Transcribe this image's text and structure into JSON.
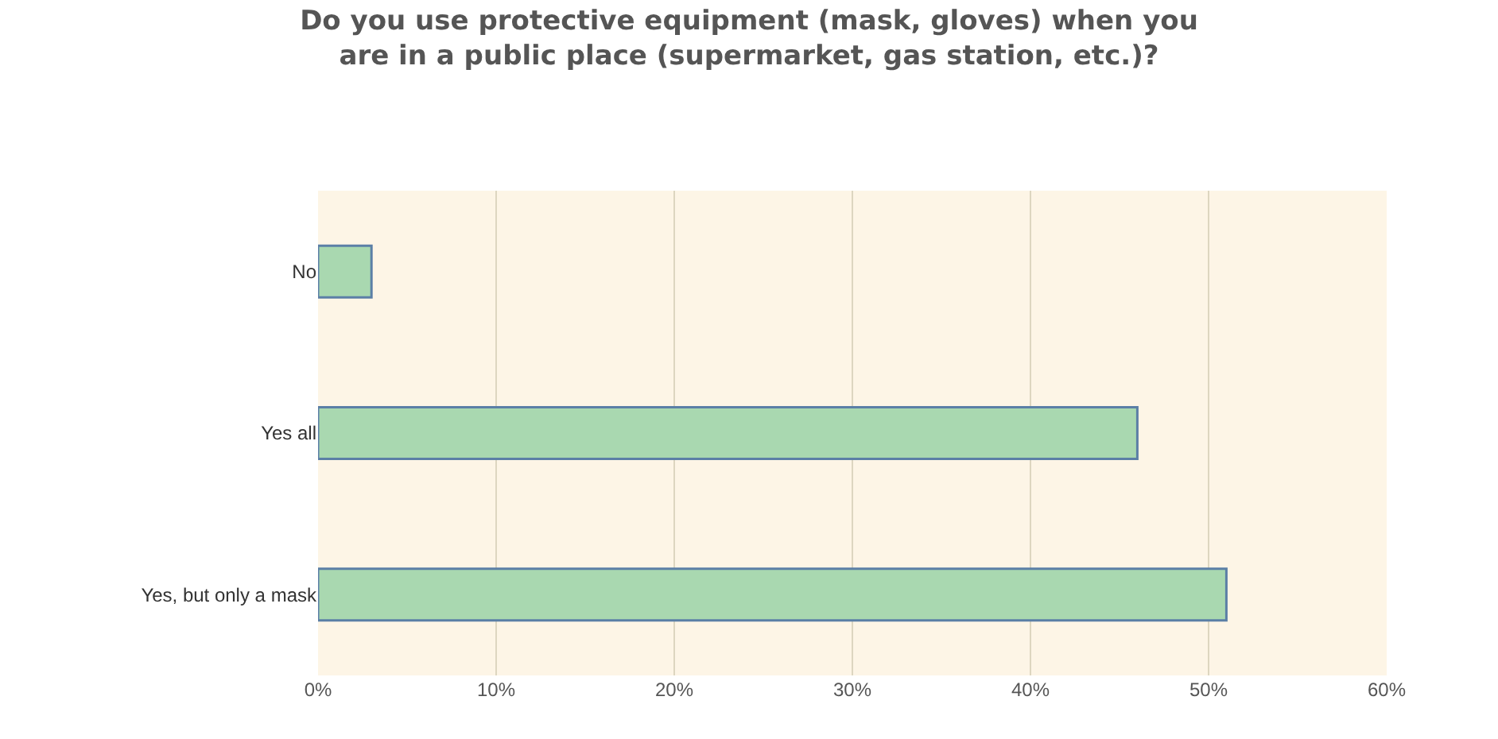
{
  "chart_data": {
    "type": "bar",
    "orientation": "horizontal",
    "title": "Do you use protective equipment (mask, gloves) when you are in a public place (supermarket, gas station, etc.)?",
    "categories": [
      "No",
      "Yes all",
      "Yes, but only a mask"
    ],
    "values": [
      3,
      46,
      51
    ],
    "color": "#a9d8b0",
    "xlim": [
      0,
      60
    ],
    "xticks": [
      {
        "value": 0,
        "label": "0%"
      },
      {
        "value": 10,
        "label": "10%"
      },
      {
        "value": 20,
        "label": "20%"
      },
      {
        "value": 30,
        "label": "30%"
      },
      {
        "value": 40,
        "label": "40%"
      },
      {
        "value": 50,
        "label": "50%"
      },
      {
        "value": 60,
        "label": "60%"
      }
    ],
    "grid": "x"
  }
}
